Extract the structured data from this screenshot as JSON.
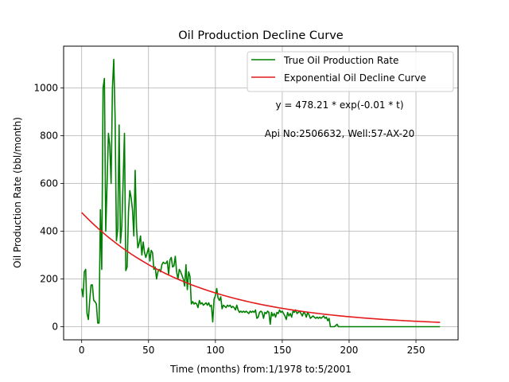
{
  "chart_data": {
    "type": "line",
    "title": "Oil Production Decline Curve",
    "xlabel": "Time (months) from:1/1978 to:5/2001",
    "ylabel": "Oil Production Rate (bbl/month)",
    "xlim": [
      -13.5,
      281.5
    ],
    "ylim": [
      -55,
      1175
    ],
    "xticks": [
      0,
      50,
      100,
      150,
      200,
      250
    ],
    "yticks": [
      0,
      200,
      400,
      600,
      800,
      1000
    ],
    "grid": true,
    "legend_position": "top-right",
    "annotations": [
      "y = 478.21 * exp(-0.01 * t)",
      "Api No:2506632, Well:57-AX-20"
    ],
    "series": [
      {
        "name": "True Oil Production Rate",
        "color": "#008000",
        "points": [
          [
            0,
            160
          ],
          [
            1,
            125
          ],
          [
            2,
            230
          ],
          [
            3,
            240
          ],
          [
            4,
            55
          ],
          [
            5,
            30
          ],
          [
            6,
            110
          ],
          [
            7,
            175
          ],
          [
            8,
            175
          ],
          [
            9,
            110
          ],
          [
            10,
            105
          ],
          [
            11,
            95
          ],
          [
            12,
            15
          ],
          [
            13,
            15
          ],
          [
            14,
            490
          ],
          [
            15,
            240
          ],
          [
            16,
            1000
          ],
          [
            17,
            1040
          ],
          [
            18,
            400
          ],
          [
            19,
            600
          ],
          [
            20,
            810
          ],
          [
            21,
            760
          ],
          [
            22,
            600
          ],
          [
            23,
            1000
          ],
          [
            24,
            1120
          ],
          [
            25,
            870
          ],
          [
            26,
            360
          ],
          [
            27,
            410
          ],
          [
            28,
            845
          ],
          [
            29,
            350
          ],
          [
            30,
            420
          ],
          [
            31,
            610
          ],
          [
            32,
            810
          ],
          [
            33,
            235
          ],
          [
            34,
            250
          ],
          [
            35,
            480
          ],
          [
            36,
            570
          ],
          [
            37,
            540
          ],
          [
            38,
            490
          ],
          [
            39,
            380
          ],
          [
            40,
            655
          ],
          [
            41,
            415
          ],
          [
            42,
            330
          ],
          [
            43,
            350
          ],
          [
            44,
            380
          ],
          [
            45,
            300
          ],
          [
            46,
            355
          ],
          [
            47,
            310
          ],
          [
            48,
            290
          ],
          [
            49,
            310
          ],
          [
            50,
            330
          ],
          [
            51,
            275
          ],
          [
            52,
            320
          ],
          [
            53,
            310
          ],
          [
            54,
            240
          ],
          [
            55,
            250
          ],
          [
            56,
            200
          ],
          [
            57,
            230
          ],
          [
            58,
            240
          ],
          [
            59,
            230
          ],
          [
            60,
            260
          ],
          [
            61,
            270
          ],
          [
            62,
            265
          ],
          [
            63,
            265
          ],
          [
            64,
            275
          ],
          [
            65,
            220
          ],
          [
            66,
            280
          ],
          [
            67,
            290
          ],
          [
            68,
            250
          ],
          [
            69,
            255
          ],
          [
            70,
            295
          ],
          [
            71,
            230
          ],
          [
            72,
            200
          ],
          [
            73,
            240
          ],
          [
            74,
            230
          ],
          [
            75,
            215
          ],
          [
            76,
            200
          ],
          [
            77,
            170
          ],
          [
            78,
            260
          ],
          [
            79,
            155
          ],
          [
            80,
            230
          ],
          [
            81,
            210
          ],
          [
            82,
            95
          ],
          [
            83,
            105
          ],
          [
            84,
            95
          ],
          [
            85,
            100
          ],
          [
            86,
            95
          ],
          [
            87,
            80
          ],
          [
            88,
            110
          ],
          [
            89,
            95
          ],
          [
            90,
            100
          ],
          [
            91,
            90
          ],
          [
            92,
            95
          ],
          [
            93,
            100
          ],
          [
            94,
            90
          ],
          [
            95,
            100
          ],
          [
            96,
            85
          ],
          [
            97,
            90
          ],
          [
            98,
            20
          ],
          [
            99,
            115
          ],
          [
            100,
            130
          ],
          [
            101,
            160
          ],
          [
            102,
            120
          ],
          [
            103,
            110
          ],
          [
            104,
            125
          ],
          [
            105,
            75
          ],
          [
            106,
            90
          ],
          [
            107,
            85
          ],
          [
            108,
            80
          ],
          [
            109,
            90
          ],
          [
            110,
            85
          ],
          [
            111,
            90
          ],
          [
            112,
            80
          ],
          [
            113,
            85
          ],
          [
            114,
            80
          ],
          [
            115,
            70
          ],
          [
            116,
            90
          ],
          [
            117,
            70
          ],
          [
            118,
            60
          ],
          [
            119,
            65
          ],
          [
            120,
            60
          ],
          [
            121,
            65
          ],
          [
            122,
            60
          ],
          [
            123,
            65
          ],
          [
            124,
            60
          ],
          [
            125,
            55
          ],
          [
            126,
            65
          ],
          [
            127,
            60
          ],
          [
            128,
            65
          ],
          [
            129,
            60
          ],
          [
            130,
            70
          ],
          [
            131,
            35
          ],
          [
            132,
            40
          ],
          [
            133,
            60
          ],
          [
            134,
            65
          ],
          [
            135,
            60
          ],
          [
            136,
            35
          ],
          [
            137,
            60
          ],
          [
            138,
            55
          ],
          [
            139,
            65
          ],
          [
            140,
            60
          ],
          [
            141,
            10
          ],
          [
            142,
            60
          ],
          [
            143,
            45
          ],
          [
            144,
            55
          ],
          [
            145,
            40
          ],
          [
            146,
            60
          ],
          [
            147,
            55
          ],
          [
            148,
            70
          ],
          [
            149,
            60
          ],
          [
            150,
            65
          ],
          [
            151,
            55
          ],
          [
            152,
            45
          ],
          [
            153,
            30
          ],
          [
            154,
            60
          ],
          [
            155,
            45
          ],
          [
            156,
            55
          ],
          [
            157,
            40
          ],
          [
            158,
            65
          ],
          [
            159,
            60
          ],
          [
            160,
            70
          ],
          [
            161,
            55
          ],
          [
            162,
            60
          ],
          [
            163,
            65
          ],
          [
            164,
            55
          ],
          [
            165,
            45
          ],
          [
            166,
            60
          ],
          [
            167,
            55
          ],
          [
            168,
            40
          ],
          [
            169,
            60
          ],
          [
            170,
            50
          ],
          [
            171,
            35
          ],
          [
            172,
            40
          ],
          [
            173,
            45
          ],
          [
            174,
            40
          ],
          [
            175,
            35
          ],
          [
            176,
            40
          ],
          [
            177,
            35
          ],
          [
            178,
            40
          ],
          [
            179,
            35
          ],
          [
            180,
            40
          ],
          [
            181,
            45
          ],
          [
            182,
            35
          ],
          [
            183,
            40
          ],
          [
            184,
            25
          ],
          [
            185,
            35
          ],
          [
            186,
            0
          ],
          [
            187,
            0
          ],
          [
            188,
            0
          ],
          [
            189,
            0
          ],
          [
            190,
            5
          ],
          [
            191,
            10
          ],
          [
            192,
            0
          ],
          [
            200,
            0
          ],
          [
            220,
            0
          ],
          [
            240,
            0
          ],
          [
            268,
            0
          ]
        ]
      },
      {
        "name": "Exponential Oil Decline Curve",
        "color": "#e41a1c",
        "model": {
          "a": 478.21,
          "k": 0.01219,
          "t_start": 0,
          "t_end": 268
        }
      }
    ]
  }
}
